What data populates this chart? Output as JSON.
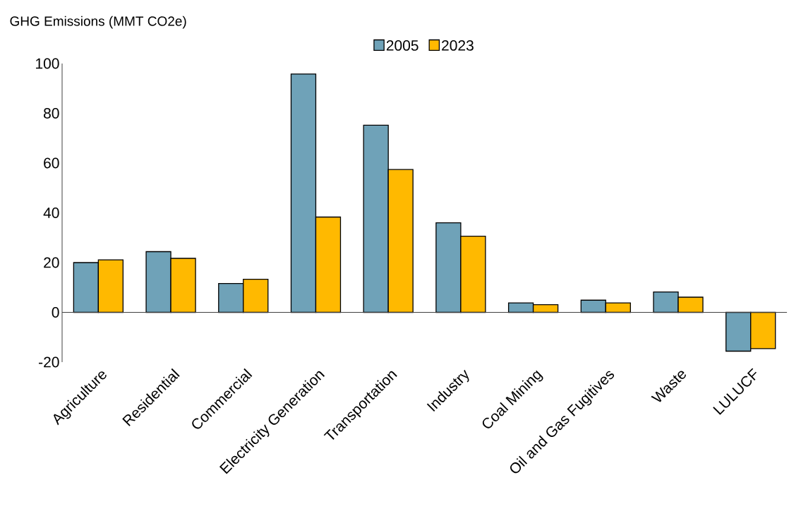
{
  "chart_data": {
    "type": "bar",
    "ylabel": "GHG Emissions (MMT CO2e)",
    "categories": [
      "Agriculture",
      "Residential",
      "Commercial",
      "Electricity Generation",
      "Transportation",
      "Industry",
      "Coal Mining",
      "Oil and Gas Fugitives",
      "Waste",
      "LULUCF"
    ],
    "series": [
      {
        "name": "2005",
        "color": "#6fa2b8",
        "values": [
          20.0,
          24.4,
          11.6,
          95.8,
          75.2,
          36.0,
          3.8,
          4.9,
          8.2,
          -15.6
        ]
      },
      {
        "name": "2023",
        "color": "#ffb900",
        "values": [
          21.1,
          21.7,
          13.3,
          38.3,
          57.4,
          30.6,
          3.1,
          3.8,
          6.1,
          -14.6
        ]
      }
    ],
    "ylim": [
      -20,
      100
    ],
    "yticks": [
      -20,
      0,
      20,
      40,
      60,
      80,
      100
    ],
    "legend": "top"
  }
}
